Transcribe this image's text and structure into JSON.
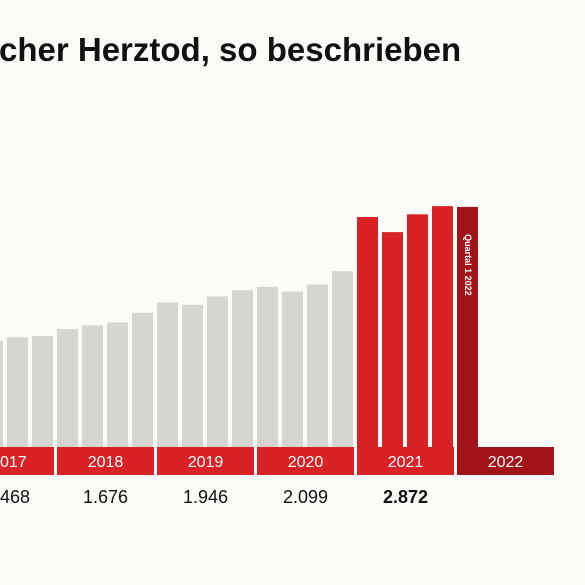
{
  "chart_data": {
    "type": "bar",
    "title": "cher Herztod, so beschrieben",
    "xlabel": "",
    "ylabel": "",
    "ylim": [
      0,
      900
    ],
    "grid": false,
    "legend": "none",
    "colors": {
      "grey": "#d6d6d1",
      "red": "#d92226",
      "dark_red": "#a3131a",
      "background": "#fbfbf7",
      "highlight_text": "#d92226"
    },
    "years": [
      {
        "label": "017",
        "total": "468",
        "color": "red"
      },
      {
        "label": "2018",
        "total": "1.676",
        "color": "red"
      },
      {
        "label": "2019",
        "total": "1.946",
        "color": "red"
      },
      {
        "label": "2020",
        "total": "2.099",
        "color": "red"
      },
      {
        "label": "2021",
        "total": "2.872",
        "color": "red",
        "highlight": true
      },
      {
        "label": "2022",
        "total": "",
        "color": "dark_red"
      }
    ],
    "series": [
      {
        "values": [
          {
            "year": "017",
            "quarter": 2,
            "value": 400,
            "color": "grey"
          },
          {
            "year": "017",
            "quarter": 3,
            "value": 413,
            "color": "grey"
          },
          {
            "year": "017",
            "quarter": 4,
            "value": 418,
            "color": "grey"
          },
          {
            "year": "2018",
            "quarter": 1,
            "value": 444,
            "color": "grey"
          },
          {
            "year": "2018",
            "quarter": 2,
            "value": 458,
            "color": "grey"
          },
          {
            "year": "2018",
            "quarter": 3,
            "value": 469,
            "color": "grey"
          },
          {
            "year": "2018",
            "quarter": 4,
            "value": 505,
            "color": "grey"
          },
          {
            "year": "2019",
            "quarter": 1,
            "value": 544,
            "color": "grey"
          },
          {
            "year": "2019",
            "quarter": 2,
            "value": 535,
            "color": "grey"
          },
          {
            "year": "2019",
            "quarter": 3,
            "value": 567,
            "color": "grey"
          },
          {
            "year": "2019",
            "quarter": 4,
            "value": 590,
            "color": "grey"
          },
          {
            "year": "2020",
            "quarter": 1,
            "value": 603,
            "color": "grey"
          },
          {
            "year": "2020",
            "quarter": 2,
            "value": 585,
            "color": "grey"
          },
          {
            "year": "2020",
            "quarter": 3,
            "value": 612,
            "color": "grey"
          },
          {
            "year": "2020",
            "quarter": 4,
            "value": 662,
            "color": "grey"
          },
          {
            "year": "2021",
            "quarter": 1,
            "value": 866,
            "color": "red"
          },
          {
            "year": "2021",
            "quarter": 2,
            "value": 809,
            "color": "red"
          },
          {
            "year": "2021",
            "quarter": 3,
            "value": 876,
            "color": "red"
          },
          {
            "year": "2021",
            "quarter": 4,
            "value": 907,
            "color": "red"
          },
          {
            "year": "2022",
            "quarter": 1,
            "value": 904,
            "color": "dark_red",
            "label": "Quartal 1 2022"
          }
        ]
      }
    ]
  }
}
